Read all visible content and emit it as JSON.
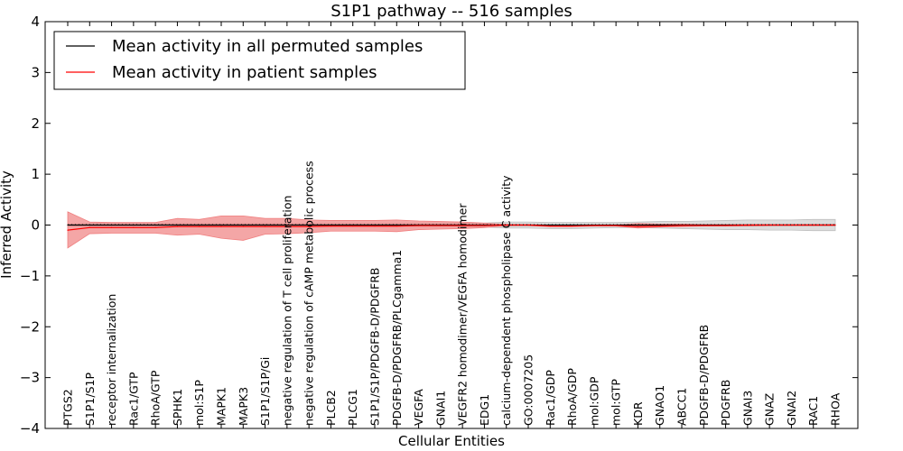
{
  "chart_data": {
    "type": "line",
    "title": "S1P1 pathway -- 516 samples",
    "xlabel": "Cellular Entities",
    "ylabel": "Inferred Activity",
    "ylim": [
      -4,
      4
    ],
    "yticks": [
      -4,
      -3,
      -2,
      -1,
      0,
      1,
      2,
      3,
      4
    ],
    "ytick_labels": [
      "−4",
      "−3",
      "−2",
      "−1",
      "0",
      "1",
      "2",
      "3",
      "4"
    ],
    "legend_position": "upper-left",
    "categories": [
      "PTGS2",
      "S1P1/S1P",
      "receptor internalization",
      "Rac1/GTP",
      "RhoA/GTP",
      "SPHK1",
      "mol:S1P",
      "MAPK1",
      "MAPK3",
      "S1P1/S1P/Gi",
      "negative regulation of T cell proliferation",
      "negative regulation of cAMP metabolic process",
      "PLCB2",
      "PLCG1",
      "S1P1/S1P/PDGFB-D/PDGFRB",
      "PDGFB-D/PDGFRB/PLCgamma1",
      "VEGFA",
      "GNAI1",
      "VEGFR2 homodimer/VEGFA homodimer",
      "EDG1",
      "calcium-dependent phospholipase C activity",
      "GO:0007205",
      "Rac1/GDP",
      "RhoA/GDP",
      "mol:GDP",
      "mol:GTP",
      "KDR",
      "GNAO1",
      "ABCC1",
      "PDGFB-D/PDGFRB",
      "PDGFRB",
      "GNAI3",
      "GNAZ",
      "GNAI2",
      "RAC1",
      "RHOA"
    ],
    "series": [
      {
        "name": "Mean activity in all permuted samples",
        "color": "#000000",
        "band_color": "#bfbfbf",
        "values": [
          0.0,
          0.0,
          0.0,
          0.0,
          0.0,
          0.0,
          0.0,
          0.0,
          0.0,
          0.0,
          0.0,
          0.0,
          0.0,
          0.0,
          0.0,
          0.0,
          0.0,
          0.0,
          0.0,
          0.0,
          0.0,
          0.0,
          0.0,
          0.0,
          0.0,
          0.0,
          0.0,
          0.0,
          0.0,
          0.0,
          0.0,
          0.0,
          0.0,
          0.0,
          0.0,
          0.0
        ],
        "lower": [
          -0.02,
          -0.03,
          -0.03,
          -0.03,
          -0.03,
          -0.03,
          -0.03,
          -0.03,
          -0.03,
          -0.03,
          -0.03,
          -0.03,
          -0.03,
          -0.03,
          -0.03,
          -0.03,
          -0.03,
          -0.03,
          -0.03,
          -0.04,
          -0.06,
          -0.06,
          -0.07,
          -0.07,
          -0.06,
          -0.05,
          -0.05,
          -0.06,
          -0.07,
          -0.08,
          -0.09,
          -0.09,
          -0.1,
          -0.1,
          -0.11,
          -0.11
        ],
        "upper": [
          0.02,
          0.03,
          0.03,
          0.03,
          0.03,
          0.03,
          0.03,
          0.03,
          0.03,
          0.03,
          0.03,
          0.03,
          0.03,
          0.03,
          0.03,
          0.03,
          0.03,
          0.03,
          0.03,
          0.04,
          0.06,
          0.06,
          0.05,
          0.05,
          0.05,
          0.05,
          0.06,
          0.07,
          0.07,
          0.08,
          0.09,
          0.1,
          0.1,
          0.1,
          0.11,
          0.11
        ]
      },
      {
        "name": "Mean activity in patient samples",
        "color": "#ff0000",
        "band_color": "#f08080",
        "values": [
          -0.1,
          -0.05,
          -0.05,
          -0.05,
          -0.05,
          -0.03,
          -0.03,
          -0.03,
          -0.03,
          -0.03,
          -0.03,
          -0.03,
          -0.02,
          -0.02,
          -0.02,
          -0.02,
          -0.01,
          -0.01,
          -0.01,
          -0.01,
          0.0,
          0.0,
          -0.02,
          -0.02,
          -0.01,
          -0.01,
          -0.03,
          -0.02,
          -0.01,
          -0.01,
          -0.01,
          0.0,
          0.0,
          0.0,
          0.0,
          0.0
        ],
        "lower": [
          -0.45,
          -0.17,
          -0.16,
          -0.16,
          -0.16,
          -0.2,
          -0.18,
          -0.26,
          -0.3,
          -0.18,
          -0.17,
          -0.15,
          -0.12,
          -0.12,
          -0.12,
          -0.13,
          -0.09,
          -0.08,
          -0.07,
          -0.05,
          -0.01,
          -0.01,
          -0.03,
          -0.03,
          -0.02,
          -0.02,
          -0.06,
          -0.04,
          -0.03,
          -0.02,
          -0.02,
          -0.02,
          -0.01,
          -0.01,
          -0.01,
          -0.01
        ],
        "upper": [
          0.26,
          0.06,
          0.05,
          0.05,
          0.05,
          0.13,
          0.11,
          0.18,
          0.18,
          0.13,
          0.13,
          0.1,
          0.09,
          0.09,
          0.09,
          0.1,
          0.08,
          0.07,
          0.06,
          0.04,
          0.01,
          0.01,
          -0.01,
          -0.01,
          0.0,
          0.0,
          0.03,
          0.02,
          0.02,
          0.01,
          0.01,
          0.01,
          0.01,
          0.01,
          0.01,
          0.01
        ]
      }
    ]
  }
}
